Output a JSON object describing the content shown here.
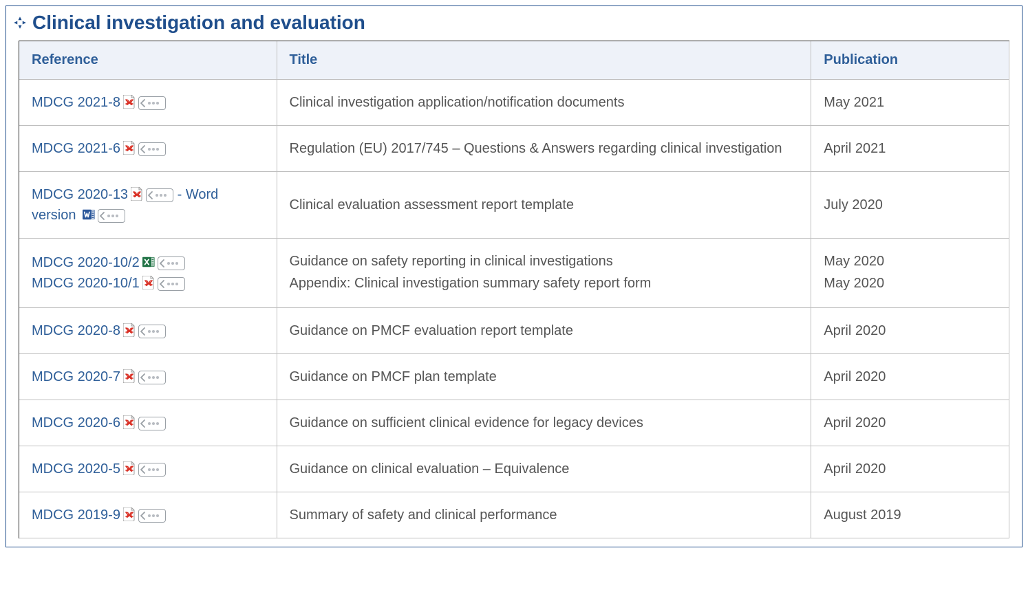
{
  "colors": {
    "brand": "#1f4e8c",
    "link": "#2f5f99",
    "header_bg": "#eef2f9",
    "grid": "#bfbfbf",
    "text": "#444444"
  },
  "section": {
    "title": "Clinical investigation and evaluation"
  },
  "table": {
    "columns": {
      "reference": "Reference",
      "title": "Title",
      "publication": "Publication"
    },
    "rows": [
      {
        "refs": [
          {
            "label": "MDCG 2021-8",
            "file_type": "pdf",
            "has_menu": true
          }
        ],
        "title_lines": [
          "Clinical investigation application/notification documents"
        ],
        "pub_lines": [
          "May 2021"
        ]
      },
      {
        "refs": [
          {
            "label": "MDCG 2021-6",
            "file_type": "pdf",
            "has_menu": true
          }
        ],
        "title_lines": [
          "Regulation (EU) 2017/745 – Questions & Answers regarding clinical investigation"
        ],
        "pub_lines": [
          "April 2021"
        ]
      },
      {
        "refs": [
          {
            "label": "MDCG 2020-13",
            "file_type": "pdf",
            "has_menu": true,
            "trailing_text": " - Word version",
            "same_line_next": true
          },
          {
            "label": "",
            "file_type": "word",
            "has_menu": true,
            "hide_label": true
          }
        ],
        "title_lines": [
          "Clinical evaluation assessment report template"
        ],
        "pub_lines": [
          "July 2020"
        ]
      },
      {
        "refs": [
          {
            "label": "MDCG 2020-10/2",
            "file_type": "excel",
            "has_menu": true
          },
          {
            "label": "MDCG 2020-10/1",
            "file_type": "pdf",
            "has_menu": true
          }
        ],
        "title_lines": [
          "Guidance on safety reporting in clinical investigations",
          "Appendix: Clinical investigation summary safety report form"
        ],
        "pub_lines": [
          "May 2020",
          "May 2020"
        ]
      },
      {
        "refs": [
          {
            "label": "MDCG 2020-8",
            "file_type": "pdf",
            "has_menu": true
          }
        ],
        "title_lines": [
          "Guidance on PMCF evaluation report template"
        ],
        "pub_lines": [
          "April 2020"
        ]
      },
      {
        "refs": [
          {
            "label": "MDCG 2020-7",
            "file_type": "pdf",
            "has_menu": true
          }
        ],
        "title_lines": [
          "Guidance on PMCF plan template"
        ],
        "pub_lines": [
          "April 2020"
        ]
      },
      {
        "refs": [
          {
            "label": "MDCG 2020-6",
            "file_type": "pdf",
            "has_menu": true
          }
        ],
        "title_lines": [
          "Guidance on sufficient clinical evidence for legacy devices"
        ],
        "pub_lines": [
          "April 2020"
        ]
      },
      {
        "refs": [
          {
            "label": "MDCG 2020-5",
            "file_type": "pdf",
            "has_menu": true
          }
        ],
        "title_lines": [
          "Guidance on clinical evaluation – Equivalence"
        ],
        "pub_lines": [
          "April 2020"
        ]
      },
      {
        "refs": [
          {
            "label": "MDCG 2019-9",
            "file_type": "pdf",
            "has_menu": true
          }
        ],
        "title_lines": [
          "Summary of safety and clinical performance"
        ],
        "pub_lines": [
          "August 2019"
        ]
      }
    ]
  }
}
